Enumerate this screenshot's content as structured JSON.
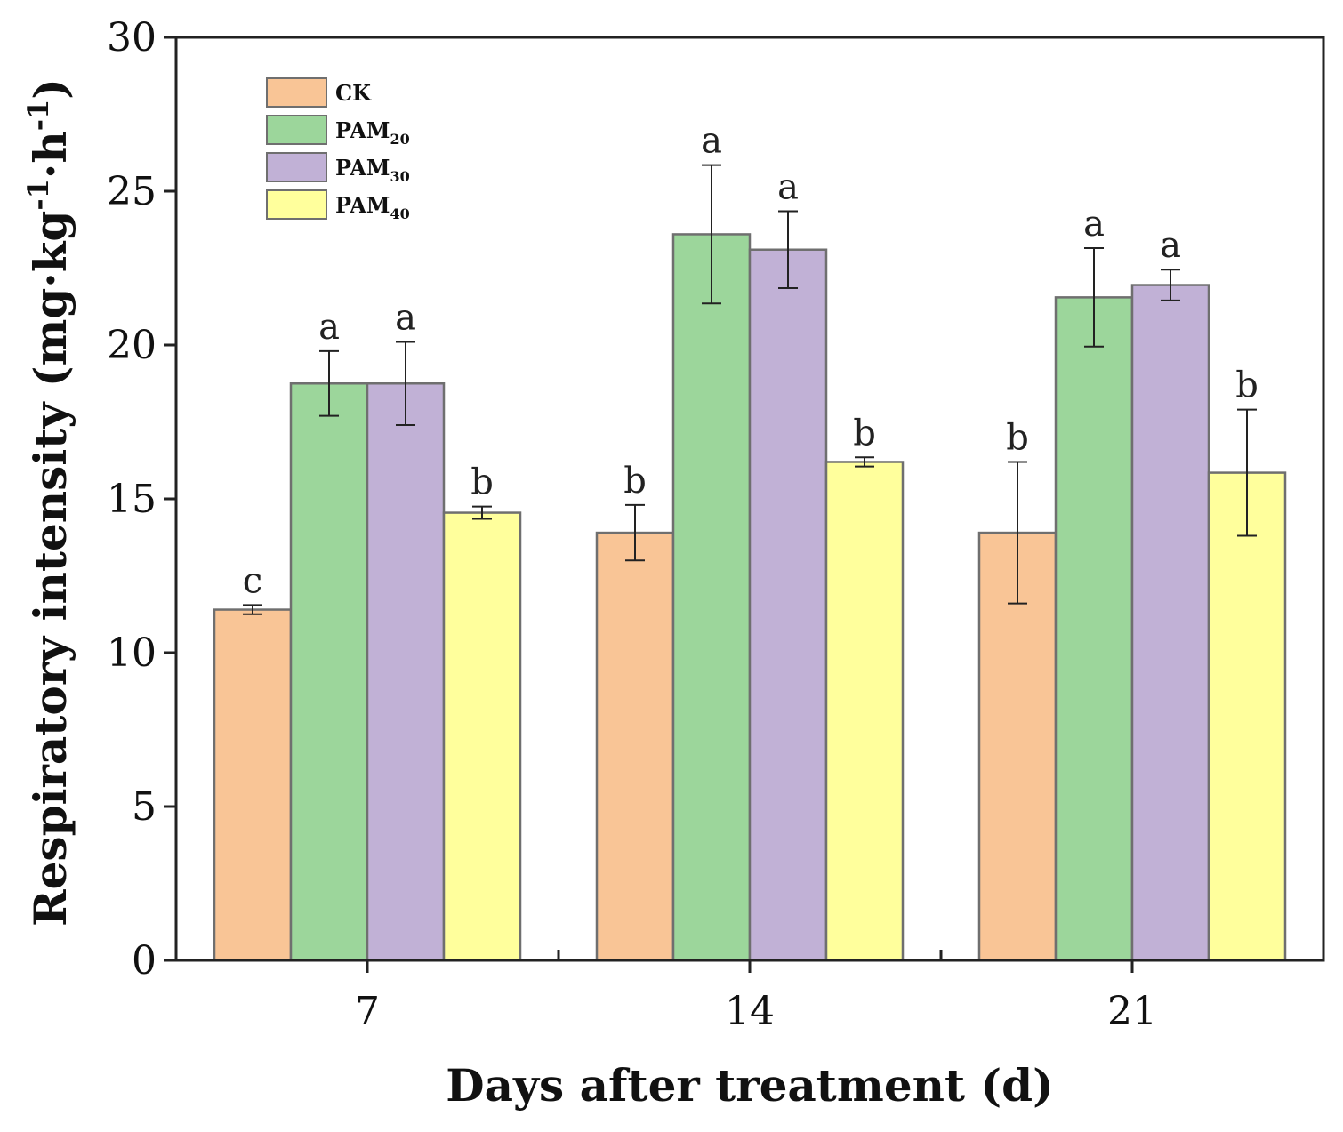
{
  "chart_data": {
    "type": "bar",
    "title": "",
    "xlabel": "Days after treatment (d)",
    "ylabel": {
      "main": "Respiratory intensity (mg",
      "dot1": "·",
      "kg": "kg",
      "sup1": "-1",
      "dot2": "·",
      "h": "h",
      "sup2": "-1",
      "close": ")"
    },
    "ylim": [
      0,
      30
    ],
    "yticks": [
      "0",
      "5",
      "10",
      "15",
      "20",
      "25",
      "30"
    ],
    "categories": [
      "7",
      "14",
      "21"
    ],
    "series": [
      {
        "name": "CK",
        "legend_main": "CK",
        "legend_sub": "",
        "color": "#f9c596",
        "values": [
          11.4,
          13.9,
          13.9
        ],
        "errors": [
          0.15,
          0.9,
          2.3
        ],
        "letters": [
          "c",
          "b",
          "b"
        ]
      },
      {
        "name": "PAM20",
        "legend_main": "PAM",
        "legend_sub": "20",
        "color": "#9cd69b",
        "values": [
          18.75,
          23.6,
          21.55
        ],
        "errors": [
          1.05,
          2.25,
          1.6
        ],
        "letters": [
          "a",
          "a",
          "a"
        ]
      },
      {
        "name": "PAM30",
        "legend_main": "PAM",
        "legend_sub": "30",
        "color": "#c1b1d6",
        "values": [
          18.75,
          23.1,
          21.95
        ],
        "errors": [
          1.35,
          1.25,
          0.5
        ],
        "letters": [
          "a",
          "a",
          "a"
        ]
      },
      {
        "name": "PAM40",
        "legend_main": "PAM",
        "legend_sub": "40",
        "color": "#ffff9c",
        "values": [
          14.55,
          16.2,
          15.85
        ],
        "errors": [
          0.2,
          0.15,
          2.05
        ],
        "letters": [
          "b",
          "b",
          "b"
        ]
      }
    ],
    "legend_position": "top-left",
    "grid": false
  }
}
